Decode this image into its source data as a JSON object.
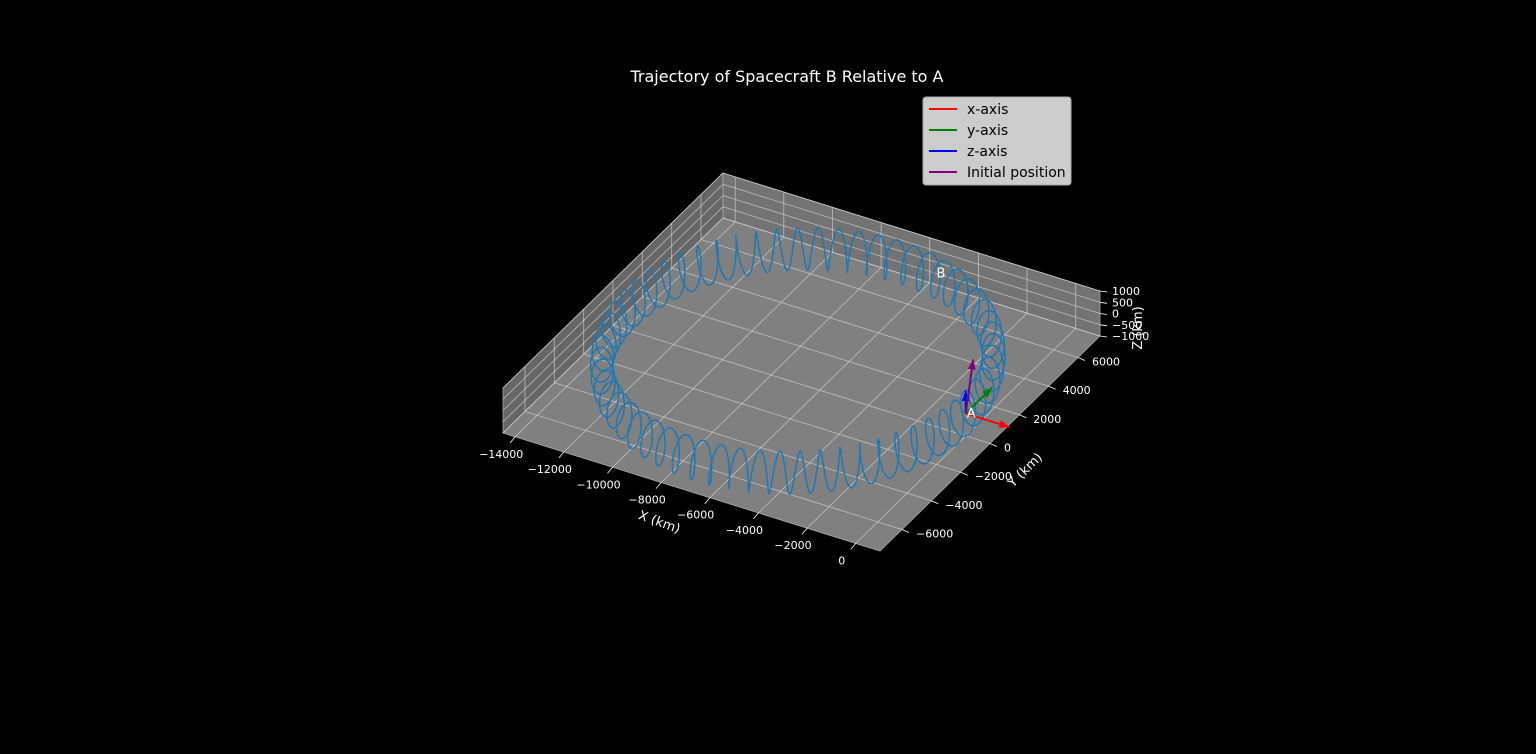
{
  "chart_data": {
    "type": "line",
    "projection": "3d",
    "title": "Trajectory of Spacecraft B Relative to A",
    "xlabel": "X (km)",
    "ylabel": "Y (km)",
    "zlabel": "Z (km)",
    "xlim": [
      -14500,
      1000
    ],
    "ylim": [
      -7500,
      7500
    ],
    "zlim": [
      -1000,
      1000
    ],
    "x_ticks": [
      -14000,
      -12000,
      -10000,
      -8000,
      -6000,
      -4000,
      -2000,
      0
    ],
    "y_ticks": [
      -6000,
      -4000,
      -2000,
      0,
      2000,
      4000,
      6000
    ],
    "z_ticks": [
      -1000,
      -500,
      0,
      500,
      1000
    ],
    "x_tick_labels": [
      "−14000",
      "−12000",
      "−10000",
      "−8000",
      "−6000",
      "−4000",
      "−2000",
      "0"
    ],
    "y_tick_labels": [
      "−6000",
      "−4000",
      "−2000",
      "0",
      "2000",
      "4000",
      "6000"
    ],
    "z_tick_labels": [
      "−1000",
      "−500",
      "0",
      "500",
      "1000"
    ],
    "grid": true,
    "legend_position": "upper-right",
    "pane_color": "#808080",
    "background_color": "#000000",
    "trajectory": {
      "color": "#1f77b4",
      "center_x": -6900,
      "center_y": 0,
      "radius": 6900,
      "oscillation_amplitude_z": 900,
      "oscillation_amplitude_r": 400,
      "oscillations_per_orbit": 60
    },
    "points": [
      {
        "label": "A",
        "x": 0,
        "y": 0,
        "z": 0
      },
      {
        "label": "B",
        "x": -5400,
        "y": 6900,
        "z": 0
      }
    ],
    "arrows": [
      {
        "name": "x-axis",
        "color": "#ff0000",
        "dx": 1800,
        "dy": 0,
        "dz": 0
      },
      {
        "name": "y-axis",
        "color": "#008000",
        "dx": 0,
        "dy": 1800,
        "dz": 0
      },
      {
        "name": "z-axis",
        "color": "#0000ff",
        "dx": 0,
        "dy": 0,
        "dz": 1000
      },
      {
        "name": "Initial position",
        "color": "#800080",
        "dx": -1200,
        "dy": 2500,
        "dz": 400
      }
    ],
    "legend": [
      {
        "label": "x-axis",
        "color": "#ff0000"
      },
      {
        "label": "y-axis",
        "color": "#008000"
      },
      {
        "label": "z-axis",
        "color": "#0000ff"
      },
      {
        "label": "Initial position",
        "color": "#800080"
      }
    ]
  }
}
